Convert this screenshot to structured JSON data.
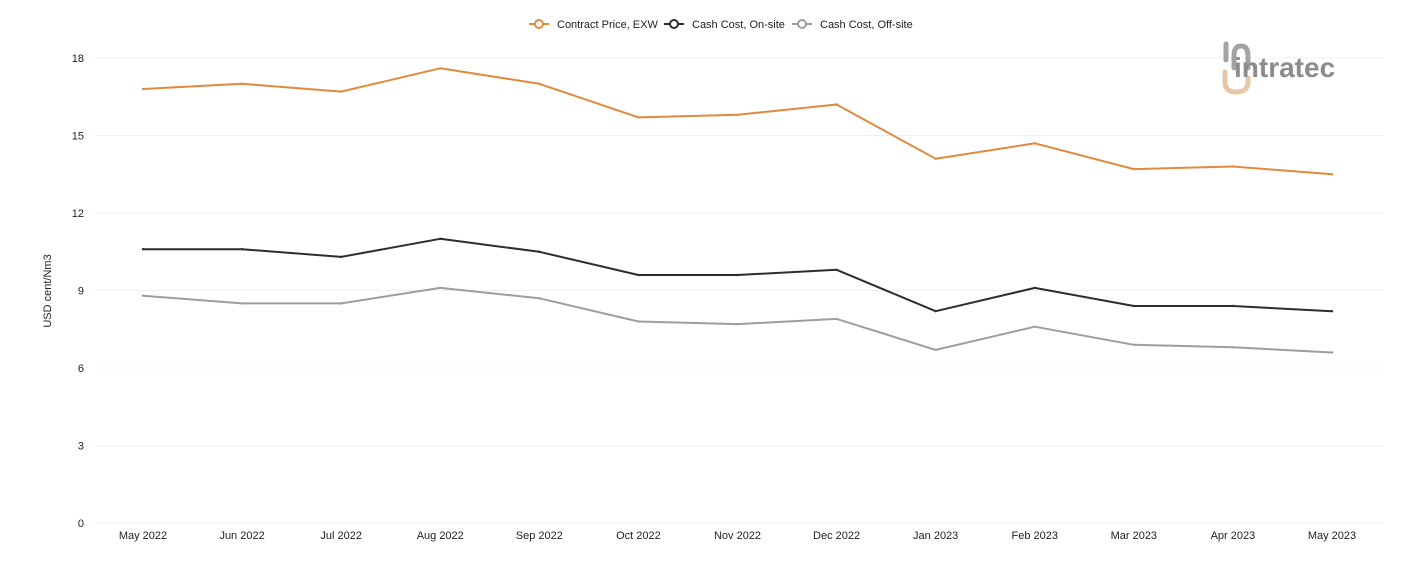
{
  "colors": {
    "contract": "#E08A3F",
    "onsite": "#2E2E2E",
    "offsite": "#9E9E9E",
    "grid": "#F0F0F0",
    "axis_text": "#222222",
    "logo_dark": "#8C8C8C",
    "logo_accent": "#E6C7A8"
  },
  "logo": {
    "text": "intratec",
    "icon": "intratec-logo-icon"
  },
  "chart_data": {
    "type": "line",
    "ylabel": "USD cent/Nm3",
    "xlabel": "",
    "ylim": [
      0,
      18
    ],
    "yticks": [
      0,
      3,
      6,
      9,
      12,
      15,
      18
    ],
    "grid": true,
    "legend": "top-center",
    "categories": [
      "May 2022",
      "Jun 2022",
      "Jul 2022",
      "Aug 2022",
      "Sep 2022",
      "Oct 2022",
      "Nov 2022",
      "Dec 2022",
      "Jan 2023",
      "Feb 2023",
      "Mar 2023",
      "Apr 2023",
      "May 2023"
    ],
    "series": [
      {
        "name": "Contract Price, EXW",
        "color_key": "contract",
        "values": [
          16.8,
          17.0,
          16.7,
          17.6,
          17.0,
          15.7,
          15.8,
          16.2,
          14.1,
          14.7,
          13.7,
          13.8,
          13.5
        ]
      },
      {
        "name": "Cash Cost, On-site",
        "color_key": "onsite",
        "values": [
          10.6,
          10.6,
          10.3,
          11.0,
          10.5,
          9.6,
          9.6,
          9.8,
          8.2,
          9.1,
          8.4,
          8.4,
          8.2
        ]
      },
      {
        "name": "Cash Cost, Off-site",
        "color_key": "offsite",
        "values": [
          8.8,
          8.5,
          8.5,
          9.1,
          8.7,
          7.8,
          7.7,
          7.9,
          6.7,
          7.6,
          6.9,
          6.8,
          6.6
        ]
      }
    ]
  }
}
